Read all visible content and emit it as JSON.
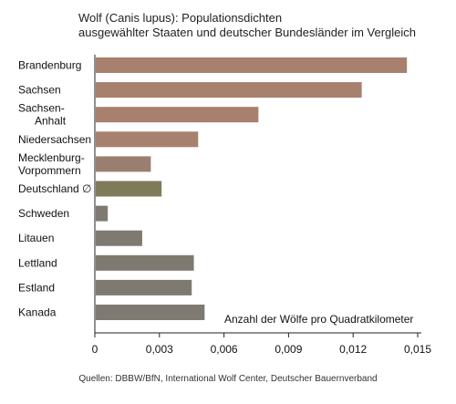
{
  "chart_data": {
    "type": "bar",
    "orientation": "horizontal",
    "title": "Wolf (Canis lupus): Populationsdichten",
    "subtitle": "ausgewählter Staaten und deutscher Bundesländer im Vergleich",
    "categories": [
      [
        "Brandenburg"
      ],
      [
        "Sachsen"
      ],
      [
        "Sachsen-",
        "Anhalt"
      ],
      [
        "Niedersachsen"
      ],
      [
        "Mecklenburg-",
        "Vorpommern"
      ],
      [
        "Deutschland ∅"
      ],
      [
        "Schweden"
      ],
      [
        "Litauen"
      ],
      [
        "Lettland"
      ],
      [
        "Estland"
      ],
      [
        "Kanada"
      ]
    ],
    "values": [
      0.0145,
      0.0124,
      0.0076,
      0.0048,
      0.0026,
      0.0031,
      0.0006,
      0.0022,
      0.0046,
      0.0045,
      0.0051
    ],
    "xlabel": "Anzahl der Wölfe pro Quadratkilometer",
    "xlim": [
      0,
      0.015
    ],
    "xticks": [
      0,
      0.003,
      0.006,
      0.009,
      0.012,
      0.015
    ],
    "xtick_labels": [
      "0",
      "0,003",
      "0,006",
      "0,009",
      "0,012",
      "0,015"
    ],
    "grid": false,
    "colors": {
      "states_top": "#a8806e",
      "states_bottom": "#9a7f70",
      "germany": "#7d7b5a",
      "countries": "#7e7a72",
      "axis": "#222222"
    },
    "bar_color_index": [
      "states_top",
      "states_top",
      "states_top",
      "states_top",
      "states_bottom",
      "germany",
      "countries",
      "countries",
      "countries",
      "countries",
      "countries"
    ]
  },
  "source": "Quellen: DBBW/BfN, International Wolf Center, Deutscher Bauernverband"
}
